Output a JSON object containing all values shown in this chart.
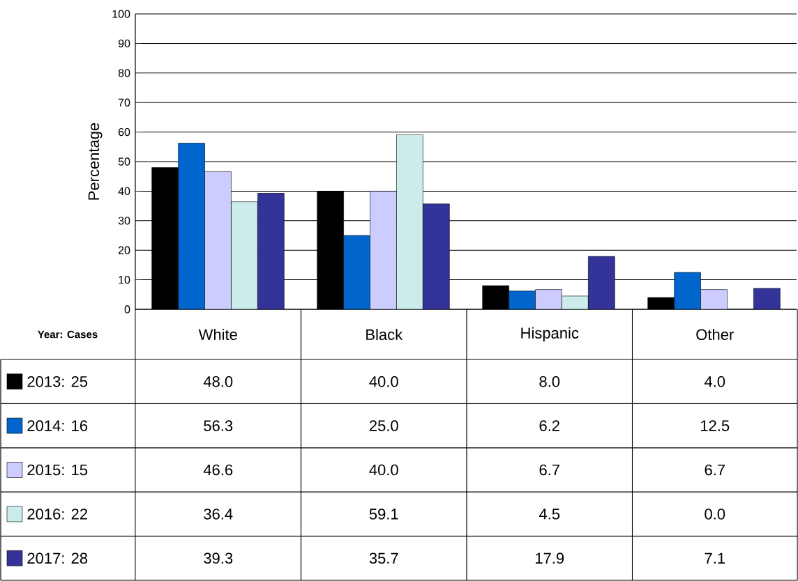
{
  "chart_data": {
    "type": "bar",
    "ylabel": "Percentage",
    "legend_title": "Year: Cases",
    "categories": [
      "White",
      "Black",
      "Hispanic",
      "Other"
    ],
    "series": [
      {
        "name": "2013: 25",
        "color": "#000000",
        "values": [
          48.0,
          40.0,
          8.0,
          4.0
        ],
        "value_labels": [
          "48.0",
          "40.0",
          "8.0",
          "4.0"
        ]
      },
      {
        "name": "2014: 16",
        "color": "#0066cc",
        "values": [
          56.3,
          25.0,
          6.2,
          12.5
        ],
        "value_labels": [
          "56.3",
          "25.0",
          "6.2",
          "12.5"
        ]
      },
      {
        "name": "2015: 15",
        "color": "#ccccff",
        "values": [
          46.6,
          40.0,
          6.7,
          6.7
        ],
        "value_labels": [
          "46.6",
          "40.0",
          "6.7",
          "6.7"
        ]
      },
      {
        "name": "2016: 22",
        "color": "#ccecec",
        "values": [
          36.4,
          59.1,
          4.5,
          0.0
        ],
        "value_labels": [
          "36.4",
          "59.1",
          "4.5",
          "0.0"
        ]
      },
      {
        "name": "2017: 28",
        "color": "#333399",
        "values": [
          39.3,
          35.7,
          17.9,
          7.1
        ],
        "value_labels": [
          "39.3",
          "35.7",
          "17.9",
          "7.1"
        ]
      }
    ],
    "ylim": [
      0,
      100
    ],
    "yticks": [
      0,
      10,
      20,
      30,
      40,
      50,
      60,
      70,
      80,
      90,
      100
    ],
    "grid": "y",
    "legend": "bottom"
  }
}
